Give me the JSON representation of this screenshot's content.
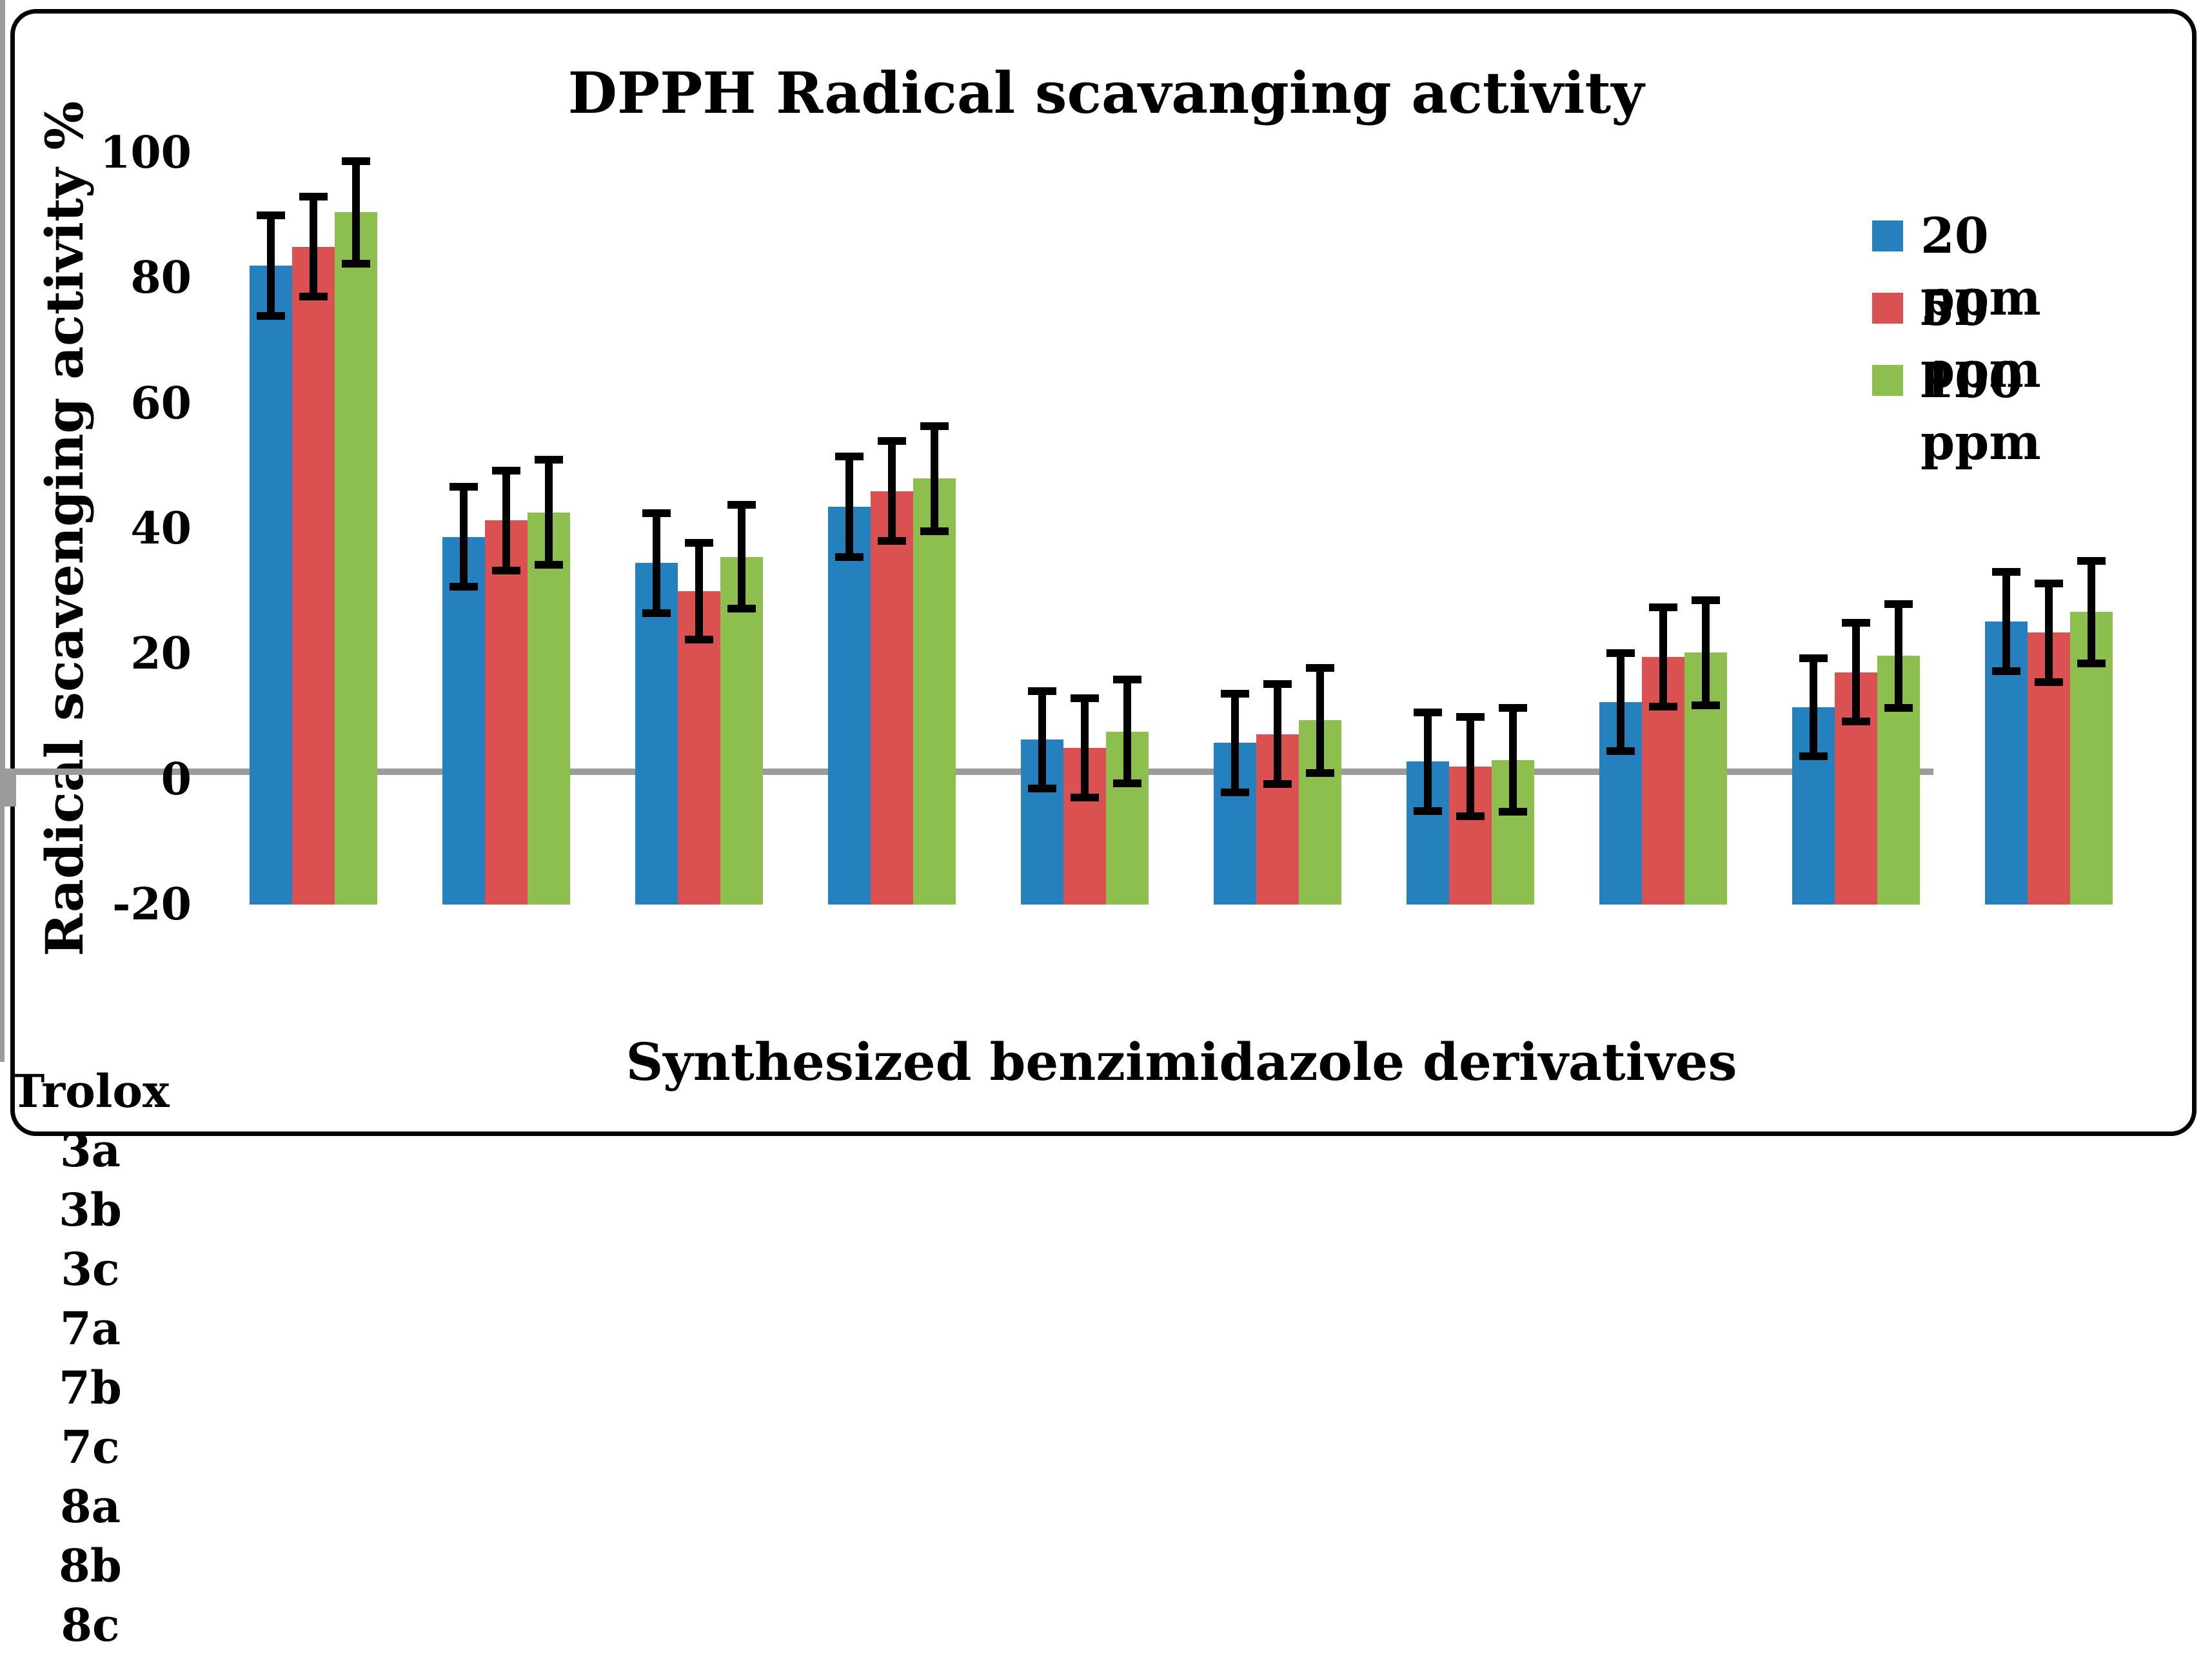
{
  "figure": {
    "title": "DPPH Radical scavanging activity",
    "x_title": "Synthesized benzimidazole derivatives",
    "y_title": "Radical scavenging activity %"
  },
  "legend": {
    "position": "right-inside",
    "items": [
      {
        "label": "20 ppm",
        "color": "#2580BE"
      },
      {
        "label": "50 ppm",
        "color": "#DB5152"
      },
      {
        "label": "100 ppm",
        "color": "#8DBF4E"
      }
    ]
  },
  "chart_data": {
    "type": "bar",
    "title": "DPPH Radical scavanging activity",
    "xlabel": "Synthesized benzimidazole derivatives",
    "ylabel": "Radical scavenging activity %",
    "categories": [
      "Trolox",
      "3a",
      "3b",
      "3c",
      "7a",
      "7b",
      "7c",
      "8a",
      "8b",
      "8c"
    ],
    "series": [
      {
        "name": "20 ppm",
        "color": "#2580BE",
        "values": [
          82.0,
          38.7,
          34.5,
          43.5,
          6.3,
          5.8,
          2.8,
          12.3,
          11.5,
          25.2
        ],
        "errors": [
          8.0,
          8.0,
          8.0,
          8.0,
          7.8,
          7.9,
          7.9,
          7.8,
          7.8,
          7.9
        ]
      },
      {
        "name": "50 ppm",
        "color": "#DB5152",
        "values": [
          85.0,
          41.3,
          30.0,
          46.0,
          5.0,
          7.2,
          2.0,
          19.5,
          17.1,
          23.4
        ],
        "errors": [
          8.0,
          8.0,
          7.7,
          8.0,
          7.9,
          8.0,
          7.9,
          7.9,
          7.9,
          7.9
        ]
      },
      {
        "name": "100 ppm",
        "color": "#8DBF4E",
        "values": [
          90.5,
          42.6,
          35.5,
          48.0,
          7.6,
          9.4,
          3.1,
          20.2,
          19.7,
          26.7
        ],
        "errors": [
          8.2,
          8.4,
          8.3,
          8.4,
          8.3,
          8.4,
          8.3,
          8.4,
          8.3,
          8.2
        ]
      }
    ],
    "ylim": [
      -20,
      100
    ],
    "yticks": [
      100,
      80,
      60,
      40,
      20,
      0,
      -20
    ],
    "bars_start_at_axis_bottom": true,
    "grid": false,
    "error_bar_color": "#000000",
    "axis_color": "#9b9b9b",
    "legend_position": "upper right"
  }
}
